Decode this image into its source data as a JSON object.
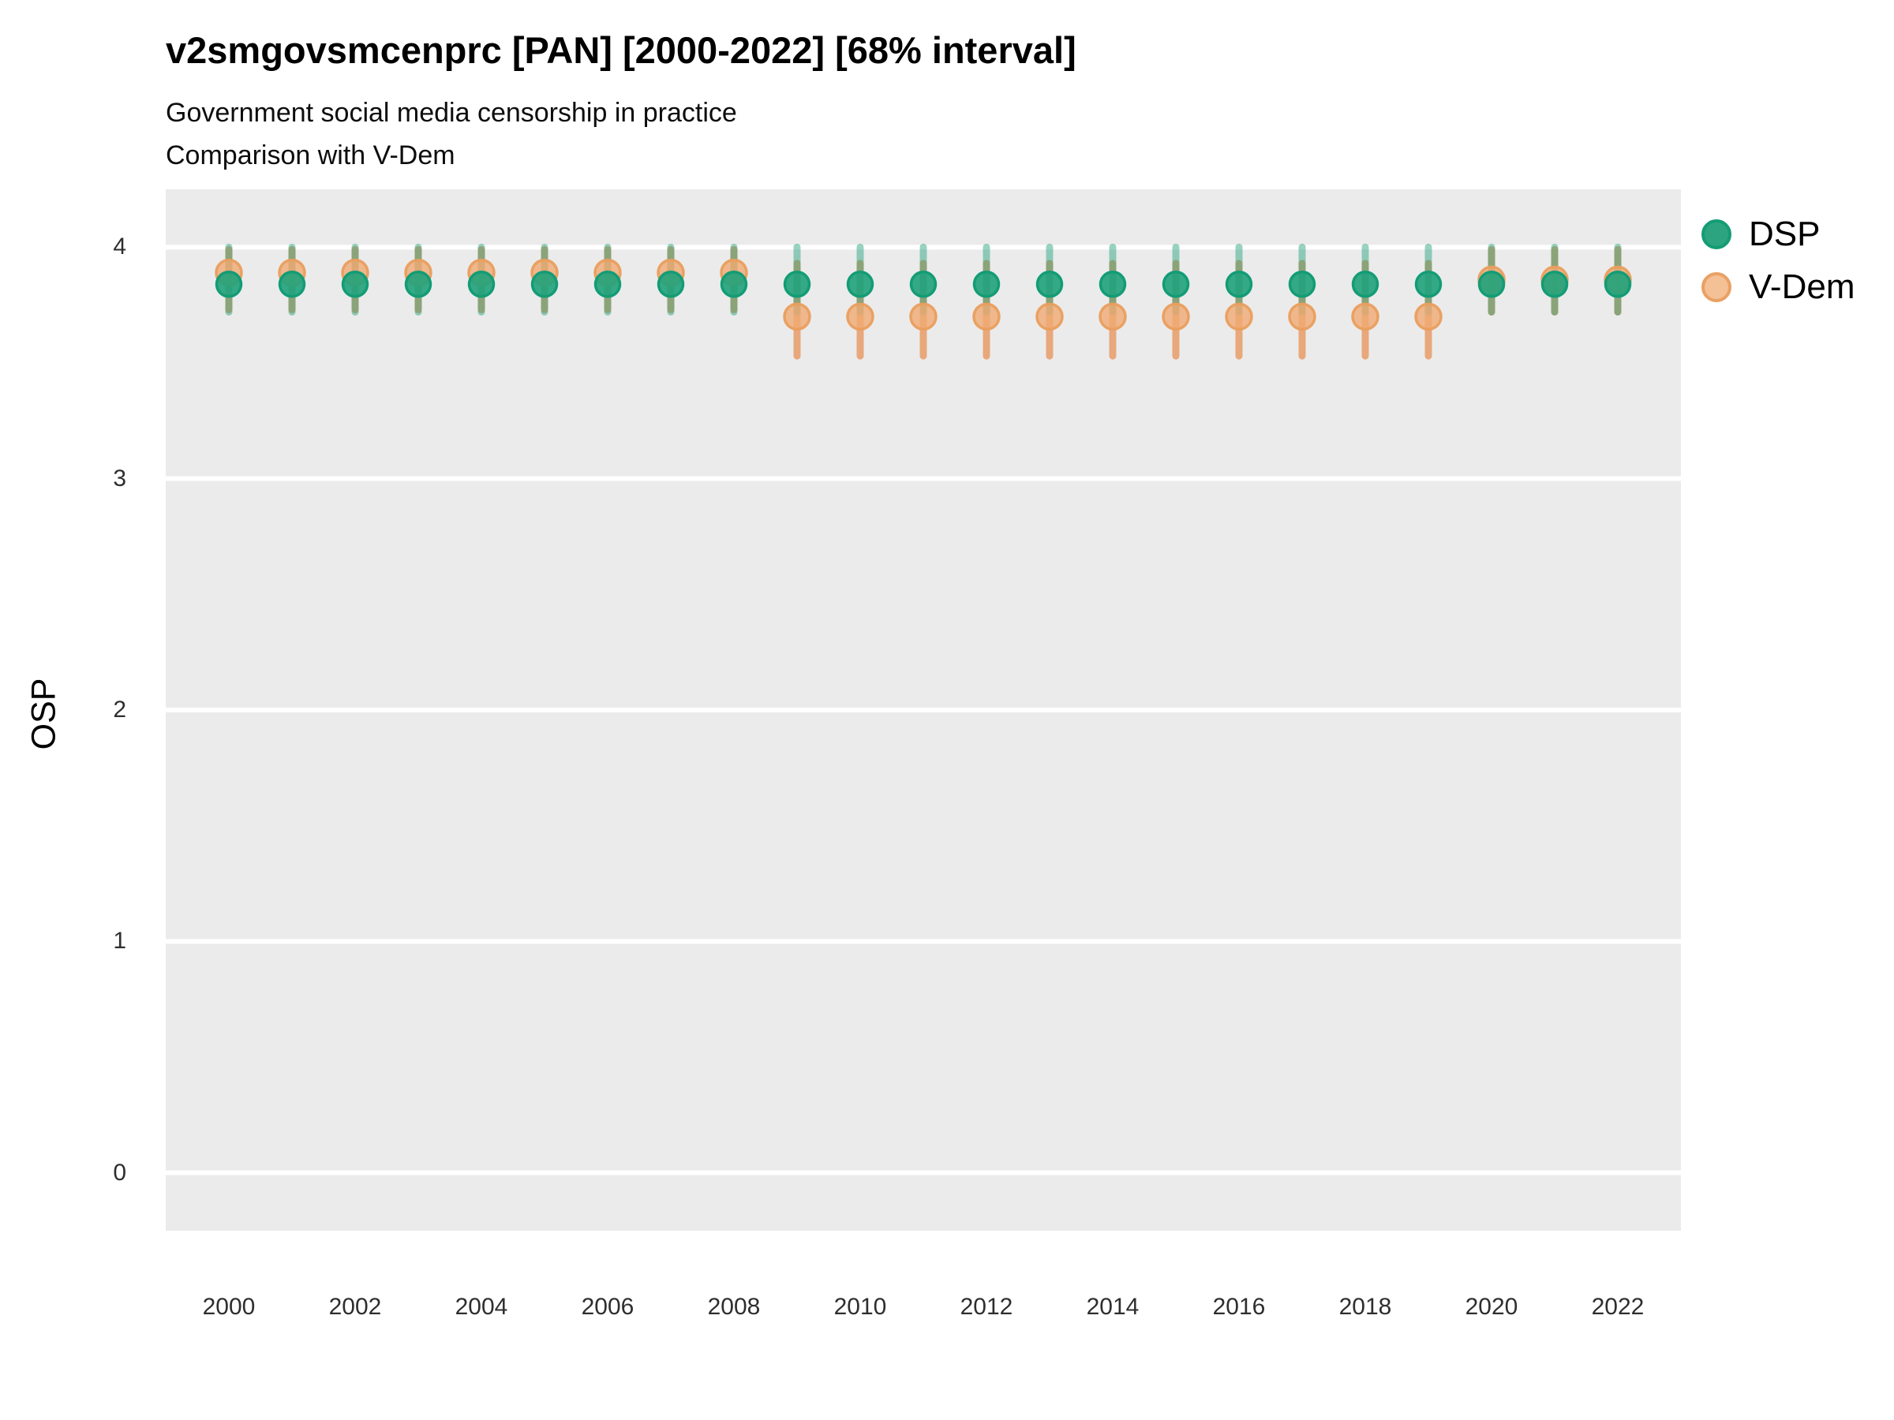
{
  "chart_data": {
    "type": "scatter",
    "title": "v2smgovsmcenprc [PAN] [2000-2022] [68% interval]",
    "subtitle": [
      "Government social media censorship in practice",
      "Comparison with V-Dem"
    ],
    "ylabel": "OSP",
    "xlabel": "",
    "interval_label": "68% interval",
    "grid": true,
    "legend_position": "right-top",
    "ylim": [
      -0.25,
      4.25
    ],
    "y_ticks": [
      0,
      1,
      2,
      3,
      4
    ],
    "x_ticks": [
      2000,
      2002,
      2004,
      2006,
      2008,
      2010,
      2012,
      2014,
      2016,
      2018,
      2020,
      2022
    ],
    "x": [
      2000,
      2001,
      2002,
      2003,
      2004,
      2005,
      2006,
      2007,
      2008,
      2009,
      2010,
      2011,
      2012,
      2013,
      2014,
      2015,
      2016,
      2017,
      2018,
      2019,
      2020,
      2021,
      2022
    ],
    "series": [
      {
        "name": "DSP",
        "est": [
          3.84,
          3.84,
          3.84,
          3.84,
          3.84,
          3.84,
          3.84,
          3.84,
          3.84,
          3.84,
          3.84,
          3.84,
          3.84,
          3.84,
          3.84,
          3.84,
          3.84,
          3.84,
          3.84,
          3.84,
          3.84,
          3.84,
          3.84
        ],
        "lo": [
          3.72,
          3.72,
          3.72,
          3.72,
          3.72,
          3.72,
          3.72,
          3.72,
          3.72,
          3.72,
          3.72,
          3.72,
          3.72,
          3.72,
          3.72,
          3.72,
          3.72,
          3.72,
          3.72,
          3.72,
          3.72,
          3.72,
          3.72
        ],
        "hi": [
          4.0,
          4.0,
          4.0,
          4.0,
          4.0,
          4.0,
          4.0,
          4.0,
          4.0,
          4.0,
          4.0,
          4.0,
          4.0,
          4.0,
          4.0,
          4.0,
          4.0,
          4.0,
          4.0,
          4.0,
          4.0,
          4.0,
          4.0
        ]
      },
      {
        "name": "V-Dem",
        "est": [
          3.89,
          3.89,
          3.89,
          3.89,
          3.89,
          3.89,
          3.89,
          3.89,
          3.89,
          3.7,
          3.7,
          3.7,
          3.7,
          3.7,
          3.7,
          3.7,
          3.7,
          3.7,
          3.7,
          3.7,
          3.86,
          3.86,
          3.86
        ],
        "lo": [
          3.73,
          3.73,
          3.73,
          3.73,
          3.73,
          3.73,
          3.73,
          3.73,
          3.73,
          3.53,
          3.53,
          3.53,
          3.53,
          3.53,
          3.53,
          3.53,
          3.53,
          3.53,
          3.53,
          3.53,
          3.72,
          3.72,
          3.72
        ],
        "hi": [
          3.99,
          3.99,
          3.99,
          3.99,
          3.99,
          3.99,
          3.99,
          3.99,
          3.99,
          3.93,
          3.93,
          3.93,
          3.93,
          3.93,
          3.93,
          3.93,
          3.93,
          3.93,
          3.93,
          3.93,
          3.99,
          3.99,
          3.99
        ]
      }
    ]
  },
  "style": {
    "panel_bg": "#EBEBEB",
    "grid_color": "#FFFFFF",
    "dsp_stroke": "#139C75",
    "dsp_fill": "rgba(32,162,123,0.9)",
    "dsp_bar": "rgba(27,158,119,0.45)",
    "vdem_stroke": "rgba(233,158,94,0.95)",
    "vdem_fill": "rgba(240,170,115,0.8)",
    "vdem_bar": "rgba(231,146,86,0.75)"
  },
  "legend": {
    "items": [
      {
        "label": "DSP"
      },
      {
        "label": "V-Dem"
      }
    ]
  }
}
